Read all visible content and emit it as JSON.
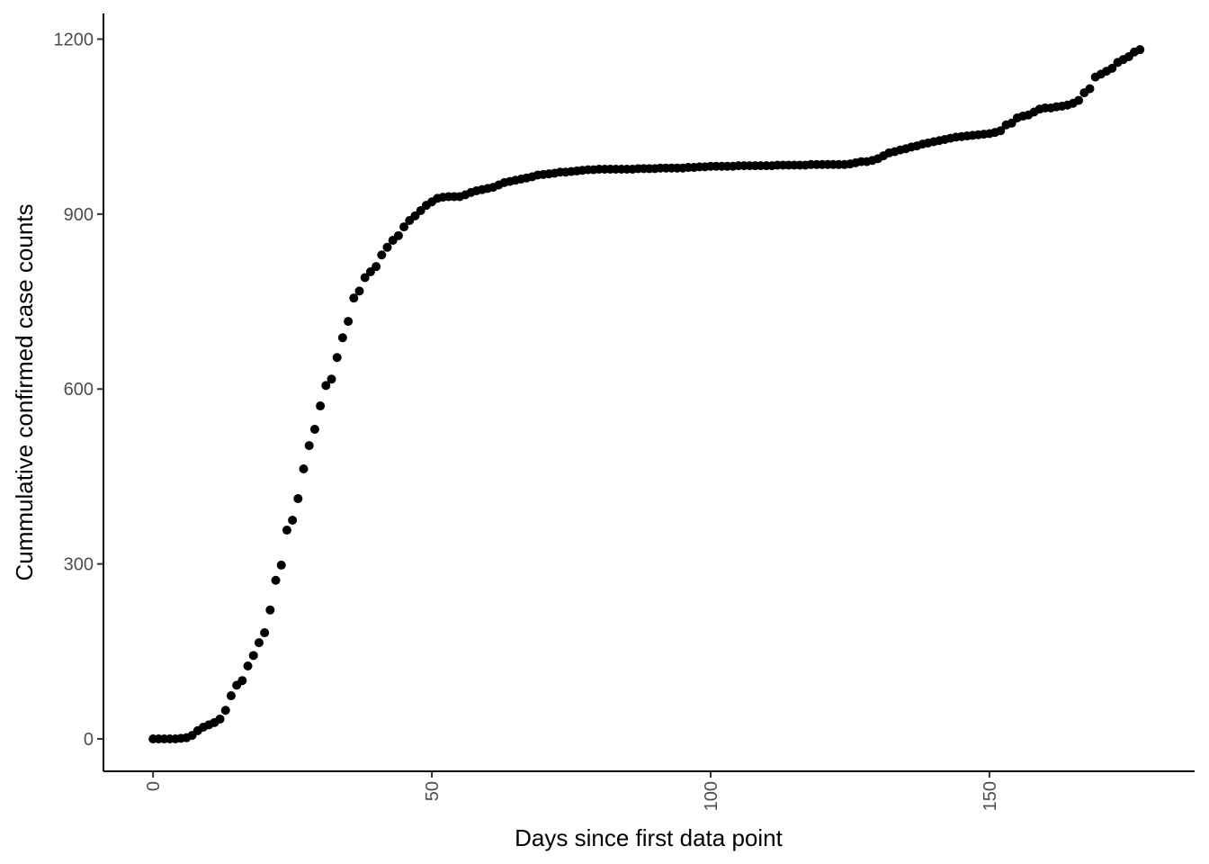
{
  "chart_data": {
    "type": "scatter",
    "x_label": "Days since first data point",
    "y_label": "Cummulative confirmed case counts",
    "color": "#000000",
    "xlim": [
      -8.9,
      186.8
    ],
    "ylim": [
      -55.6,
      1244
    ],
    "xticks": [
      0,
      50,
      100,
      150
    ],
    "yticks": [
      0,
      300,
      600,
      900,
      1200
    ],
    "x": [
      0,
      1,
      2,
      3,
      4,
      5,
      6,
      7,
      8,
      9,
      10,
      11,
      12,
      13,
      14,
      15,
      16,
      17,
      18,
      19,
      20,
      21,
      22,
      23,
      24,
      25,
      26,
      27,
      28,
      29,
      30,
      31,
      32,
      33,
      34,
      35,
      36,
      37,
      38,
      39,
      40,
      41,
      42,
      43,
      44,
      45,
      46,
      47,
      48,
      49,
      50,
      51,
      52,
      53,
      54,
      55,
      56,
      57,
      58,
      59,
      60,
      61,
      62,
      63,
      64,
      65,
      66,
      67,
      68,
      69,
      70,
      71,
      72,
      73,
      74,
      75,
      76,
      77,
      78,
      79,
      80,
      81,
      82,
      83,
      84,
      85,
      86,
      87,
      88,
      89,
      90,
      91,
      92,
      93,
      94,
      95,
      96,
      97,
      98,
      99,
      100,
      101,
      102,
      103,
      104,
      105,
      106,
      107,
      108,
      109,
      110,
      111,
      112,
      113,
      114,
      115,
      116,
      117,
      118,
      119,
      120,
      121,
      122,
      123,
      124,
      125,
      126,
      127,
      128,
      129,
      130,
      131,
      132,
      133,
      134,
      135,
      136,
      137,
      138,
      139,
      140,
      141,
      142,
      143,
      144,
      145,
      146,
      147,
      148,
      149,
      150,
      151,
      152,
      153,
      154,
      155,
      156,
      157,
      158,
      159,
      160,
      161,
      162,
      163,
      164,
      165,
      166,
      167,
      168,
      169,
      170,
      171,
      172,
      173,
      174,
      175,
      176,
      177
    ],
    "values": [
      0,
      0,
      0,
      0,
      0,
      1,
      2,
      6,
      14,
      20,
      24,
      28,
      34,
      49,
      74,
      92,
      100,
      125,
      143,
      165,
      182,
      221,
      272,
      298,
      358,
      375,
      412,
      463,
      503,
      531,
      571,
      606,
      617,
      654,
      688,
      716,
      756,
      768,
      791,
      801,
      810,
      830,
      843,
      855,
      863,
      878,
      889,
      897,
      906,
      915,
      921,
      927,
      929,
      930,
      930,
      930,
      933,
      937,
      940,
      942,
      944,
      946,
      950,
      954,
      956,
      958,
      960,
      962,
      964,
      967,
      968,
      969,
      970,
      972,
      972,
      973,
      974,
      975,
      976,
      976,
      977,
      977,
      977,
      977,
      977,
      977,
      977,
      978,
      978,
      978,
      978,
      979,
      979,
      979,
      979,
      979,
      980,
      980,
      981,
      981,
      982,
      982,
      982,
      982,
      982,
      983,
      983,
      983,
      983,
      983,
      983,
      983,
      984,
      984,
      984,
      984,
      984,
      984,
      985,
      985,
      985,
      985,
      985,
      985,
      985,
      986,
      988,
      990,
      990,
      992,
      995,
      1000,
      1005,
      1007,
      1010,
      1012,
      1015,
      1017,
      1020,
      1022,
      1024,
      1026,
      1028,
      1030,
      1032,
      1033,
      1034,
      1035,
      1036,
      1037,
      1038,
      1040,
      1043,
      1053,
      1056,
      1065,
      1068,
      1070,
      1075,
      1080,
      1082,
      1082,
      1084,
      1085,
      1087,
      1090,
      1095,
      1108,
      1115,
      1135,
      1140,
      1145,
      1150,
      1160,
      1165,
      1170,
      1178,
      1182
    ]
  }
}
